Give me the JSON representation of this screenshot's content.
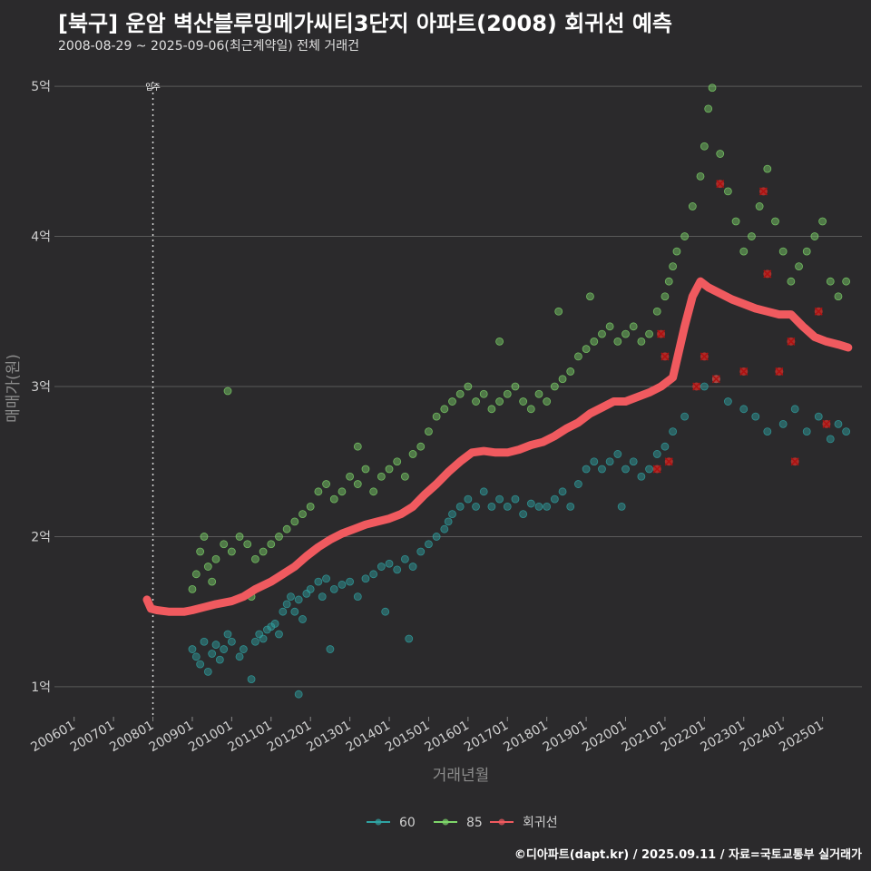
{
  "header": {
    "title": "[북구] 운암 벽산블루밍메가씨티3단지 아파트(2008) 회귀선 예측",
    "subtitle": "2008-08-29 ~ 2025-09-06(최근계약일) 전체 거래건"
  },
  "caption": "©디아파트(dapt.kr) / 2025.09.11 / 자료=국토교통부 실거래가",
  "colors": {
    "background": "#2b2a2c",
    "grid": "#5a5a5a",
    "s60": "#2fa3a3",
    "s85": "#7ed66a",
    "regression": "#f05a5f",
    "highlight": "#e0302a"
  },
  "chart_data": {
    "type": "scatter",
    "title": "[북구] 운암 벽산블루밍메가씨티3단지 아파트(2008) 회귀선 예측",
    "subtitle": "2008-08-29 ~ 2025-09-06(최근계약일) 전체 거래건",
    "xlabel": "거래년월",
    "ylabel": "매매가(원)",
    "xlim": [
      2005.5,
      2026.0
    ],
    "ylim": [
      0.8,
      5.2
    ],
    "grid": true,
    "legend_position": "bottom",
    "x_ticks": [
      {
        "label": "200601",
        "x": 2006.0
      },
      {
        "label": "200701",
        "x": 2007.0
      },
      {
        "label": "200801",
        "x": 2008.0
      },
      {
        "label": "200901",
        "x": 2009.0
      },
      {
        "label": "201001",
        "x": 2010.0
      },
      {
        "label": "201101",
        "x": 2011.0
      },
      {
        "label": "201201",
        "x": 2012.0
      },
      {
        "label": "201301",
        "x": 2013.0
      },
      {
        "label": "201401",
        "x": 2014.0
      },
      {
        "label": "201501",
        "x": 2015.0
      },
      {
        "label": "201601",
        "x": 2016.0
      },
      {
        "label": "201701",
        "x": 2017.0
      },
      {
        "label": "201801",
        "x": 2018.0
      },
      {
        "label": "201901",
        "x": 2019.0
      },
      {
        "label": "202001",
        "x": 2020.0
      },
      {
        "label": "202101",
        "x": 2021.0
      },
      {
        "label": "202201",
        "x": 2022.0
      },
      {
        "label": "202301",
        "x": 2023.0
      },
      {
        "label": "202401",
        "x": 2024.0
      },
      {
        "label": "202501",
        "x": 2025.0
      }
    ],
    "y_ticks": [
      {
        "label": "1억",
        "y": 1
      },
      {
        "label": "2억",
        "y": 2
      },
      {
        "label": "3억",
        "y": 3
      },
      {
        "label": "4억",
        "y": 4
      },
      {
        "label": "5억",
        "y": 5
      }
    ],
    "annotation": {
      "label": "입주",
      "x": 2008.0
    },
    "legend": [
      {
        "name": "60",
        "color": "#2fa3a3"
      },
      {
        "name": "85",
        "color": "#7ed66a"
      },
      {
        "name": "회귀선",
        "color": "#f05a5f"
      }
    ],
    "series": [
      {
        "name": "60",
        "points": [
          [
            2009.0,
            1.25
          ],
          [
            2009.1,
            1.2
          ],
          [
            2009.2,
            1.15
          ],
          [
            2009.3,
            1.3
          ],
          [
            2009.4,
            1.1
          ],
          [
            2009.5,
            1.22
          ],
          [
            2009.6,
            1.28
          ],
          [
            2009.7,
            1.18
          ],
          [
            2009.8,
            1.25
          ],
          [
            2009.9,
            1.35
          ],
          [
            2010.0,
            1.3
          ],
          [
            2010.2,
            1.2
          ],
          [
            2010.3,
            1.25
          ],
          [
            2010.5,
            1.05
          ],
          [
            2010.6,
            1.3
          ],
          [
            2010.7,
            1.35
          ],
          [
            2010.8,
            1.32
          ],
          [
            2010.9,
            1.38
          ],
          [
            2011.0,
            1.4
          ],
          [
            2011.1,
            1.42
          ],
          [
            2011.2,
            1.35
          ],
          [
            2011.3,
            1.5
          ],
          [
            2011.4,
            1.55
          ],
          [
            2011.5,
            1.6
          ],
          [
            2011.6,
            1.5
          ],
          [
            2011.7,
            1.58
          ],
          [
            2011.8,
            1.45
          ],
          [
            2011.9,
            1.62
          ],
          [
            2012.0,
            1.65
          ],
          [
            2012.2,
            1.7
          ],
          [
            2012.3,
            1.6
          ],
          [
            2012.4,
            1.72
          ],
          [
            2012.6,
            1.65
          ],
          [
            2012.8,
            1.68
          ],
          [
            2013.0,
            1.7
          ],
          [
            2013.2,
            1.6
          ],
          [
            2013.4,
            1.72
          ],
          [
            2013.6,
            1.75
          ],
          [
            2013.8,
            1.8
          ],
          [
            2014.0,
            1.82
          ],
          [
            2014.2,
            1.78
          ],
          [
            2014.4,
            1.85
          ],
          [
            2014.6,
            1.8
          ],
          [
            2014.8,
            1.9
          ],
          [
            2015.0,
            1.95
          ],
          [
            2015.2,
            2.0
          ],
          [
            2015.4,
            2.05
          ],
          [
            2015.5,
            2.1
          ],
          [
            2015.6,
            2.15
          ],
          [
            2015.8,
            2.2
          ],
          [
            2016.0,
            2.25
          ],
          [
            2016.2,
            2.2
          ],
          [
            2016.4,
            2.3
          ],
          [
            2016.6,
            2.2
          ],
          [
            2016.8,
            2.25
          ],
          [
            2017.0,
            2.2
          ],
          [
            2017.2,
            2.25
          ],
          [
            2017.4,
            2.15
          ],
          [
            2017.6,
            2.22
          ],
          [
            2017.8,
            2.2
          ],
          [
            2018.0,
            2.2
          ],
          [
            2018.2,
            2.25
          ],
          [
            2018.4,
            2.3
          ],
          [
            2018.6,
            2.2
          ],
          [
            2018.8,
            2.35
          ],
          [
            2019.0,
            2.45
          ],
          [
            2019.2,
            2.5
          ],
          [
            2019.4,
            2.45
          ],
          [
            2019.6,
            2.5
          ],
          [
            2019.8,
            2.55
          ],
          [
            2020.0,
            2.45
          ],
          [
            2020.2,
            2.5
          ],
          [
            2020.4,
            2.4
          ],
          [
            2020.6,
            2.45
          ],
          [
            2020.8,
            2.55
          ],
          [
            2021.0,
            2.6
          ],
          [
            2021.2,
            2.7
          ],
          [
            2021.5,
            2.8
          ],
          [
            2022.0,
            3.0
          ],
          [
            2022.3,
            3.05
          ],
          [
            2022.6,
            2.9
          ],
          [
            2023.0,
            2.85
          ],
          [
            2023.3,
            2.8
          ],
          [
            2023.6,
            2.7
          ],
          [
            2024.0,
            2.75
          ],
          [
            2024.3,
            2.85
          ],
          [
            2024.6,
            2.7
          ],
          [
            2024.9,
            2.8
          ],
          [
            2025.2,
            2.65
          ],
          [
            2025.4,
            2.75
          ],
          [
            2025.6,
            2.7
          ],
          [
            2014.5,
            1.32
          ],
          [
            2011.7,
            0.95
          ],
          [
            2012.5,
            1.25
          ],
          [
            2013.9,
            1.5
          ],
          [
            2019.9,
            2.2
          ]
        ]
      },
      {
        "name": "85",
        "points": [
          [
            2009.0,
            1.65
          ],
          [
            2009.1,
            1.75
          ],
          [
            2009.2,
            1.9
          ],
          [
            2009.3,
            2.0
          ],
          [
            2009.4,
            1.8
          ],
          [
            2009.5,
            1.7
          ],
          [
            2009.6,
            1.85
          ],
          [
            2009.8,
            1.95
          ],
          [
            2010.0,
            1.9
          ],
          [
            2010.2,
            2.0
          ],
          [
            2010.4,
            1.95
          ],
          [
            2010.6,
            1.85
          ],
          [
            2010.8,
            1.9
          ],
          [
            2011.0,
            1.95
          ],
          [
            2011.2,
            2.0
          ],
          [
            2011.4,
            2.05
          ],
          [
            2011.6,
            2.1
          ],
          [
            2011.8,
            2.15
          ],
          [
            2012.0,
            2.2
          ],
          [
            2012.2,
            2.3
          ],
          [
            2012.4,
            2.35
          ],
          [
            2012.6,
            2.25
          ],
          [
            2012.8,
            2.3
          ],
          [
            2013.0,
            2.4
          ],
          [
            2013.2,
            2.35
          ],
          [
            2013.4,
            2.45
          ],
          [
            2013.6,
            2.3
          ],
          [
            2013.8,
            2.4
          ],
          [
            2014.0,
            2.45
          ],
          [
            2014.2,
            2.5
          ],
          [
            2014.4,
            2.4
          ],
          [
            2014.6,
            2.55
          ],
          [
            2014.8,
            2.6
          ],
          [
            2015.0,
            2.7
          ],
          [
            2015.2,
            2.8
          ],
          [
            2015.4,
            2.85
          ],
          [
            2015.6,
            2.9
          ],
          [
            2015.8,
            2.95
          ],
          [
            2016.0,
            3.0
          ],
          [
            2016.2,
            2.9
          ],
          [
            2016.4,
            2.95
          ],
          [
            2016.6,
            2.85
          ],
          [
            2016.8,
            2.9
          ],
          [
            2017.0,
            2.95
          ],
          [
            2017.2,
            3.0
          ],
          [
            2017.4,
            2.9
          ],
          [
            2017.6,
            2.85
          ],
          [
            2017.8,
            2.95
          ],
          [
            2018.0,
            2.9
          ],
          [
            2018.2,
            3.0
          ],
          [
            2018.4,
            3.05
          ],
          [
            2018.6,
            3.1
          ],
          [
            2018.8,
            3.2
          ],
          [
            2019.0,
            3.25
          ],
          [
            2019.2,
            3.3
          ],
          [
            2019.4,
            3.35
          ],
          [
            2019.6,
            3.4
          ],
          [
            2019.8,
            3.3
          ],
          [
            2020.0,
            3.35
          ],
          [
            2020.2,
            3.4
          ],
          [
            2020.4,
            3.3
          ],
          [
            2020.6,
            3.35
          ],
          [
            2020.8,
            3.5
          ],
          [
            2021.0,
            3.6
          ],
          [
            2021.1,
            3.7
          ],
          [
            2021.2,
            3.8
          ],
          [
            2021.3,
            3.9
          ],
          [
            2021.5,
            4.0
          ],
          [
            2021.7,
            4.2
          ],
          [
            2021.9,
            4.4
          ],
          [
            2022.0,
            4.6
          ],
          [
            2022.1,
            4.85
          ],
          [
            2022.2,
            4.99
          ],
          [
            2022.4,
            4.55
          ],
          [
            2022.6,
            4.3
          ],
          [
            2022.8,
            4.1
          ],
          [
            2023.0,
            3.9
          ],
          [
            2023.2,
            4.0
          ],
          [
            2023.4,
            4.2
          ],
          [
            2023.6,
            4.45
          ],
          [
            2023.8,
            4.1
          ],
          [
            2024.0,
            3.9
          ],
          [
            2024.2,
            3.7
          ],
          [
            2024.4,
            3.8
          ],
          [
            2024.6,
            3.9
          ],
          [
            2024.8,
            4.0
          ],
          [
            2025.0,
            4.1
          ],
          [
            2025.2,
            3.7
          ],
          [
            2025.4,
            3.6
          ],
          [
            2025.6,
            3.7
          ],
          [
            2009.9,
            2.97
          ],
          [
            2016.8,
            3.3
          ],
          [
            2013.2,
            2.6
          ],
          [
            2019.1,
            3.6
          ],
          [
            2018.3,
            3.5
          ],
          [
            2010.5,
            1.6
          ]
        ]
      }
    ],
    "highlights": [
      [
        2020.8,
        2.45
      ],
      [
        2020.9,
        3.35
      ],
      [
        2021.0,
        3.2
      ],
      [
        2021.1,
        2.5
      ],
      [
        2021.8,
        3.0
      ],
      [
        2022.0,
        3.2
      ],
      [
        2022.3,
        3.05
      ],
      [
        2022.4,
        4.35
      ],
      [
        2023.0,
        3.1
      ],
      [
        2023.5,
        4.3
      ],
      [
        2023.6,
        3.75
      ],
      [
        2023.9,
        3.1
      ],
      [
        2024.2,
        3.3
      ],
      [
        2024.3,
        2.5
      ],
      [
        2024.9,
        3.5
      ],
      [
        2025.1,
        2.75
      ]
    ],
    "regression": [
      [
        2007.85,
        1.58
      ],
      [
        2007.95,
        1.52
      ],
      [
        2008.1,
        1.51
      ],
      [
        2008.4,
        1.5
      ],
      [
        2008.8,
        1.5
      ],
      [
        2009.0,
        1.51
      ],
      [
        2009.3,
        1.53
      ],
      [
        2009.6,
        1.55
      ],
      [
        2010.0,
        1.57
      ],
      [
        2010.3,
        1.6
      ],
      [
        2010.6,
        1.65
      ],
      [
        2011.0,
        1.7
      ],
      [
        2011.3,
        1.75
      ],
      [
        2011.6,
        1.8
      ],
      [
        2011.9,
        1.87
      ],
      [
        2012.2,
        1.93
      ],
      [
        2012.5,
        1.98
      ],
      [
        2012.8,
        2.02
      ],
      [
        2013.1,
        2.05
      ],
      [
        2013.4,
        2.08
      ],
      [
        2013.7,
        2.1
      ],
      [
        2014.0,
        2.12
      ],
      [
        2014.3,
        2.15
      ],
      [
        2014.6,
        2.2
      ],
      [
        2014.9,
        2.28
      ],
      [
        2015.2,
        2.35
      ],
      [
        2015.5,
        2.43
      ],
      [
        2015.8,
        2.5
      ],
      [
        2016.1,
        2.56
      ],
      [
        2016.4,
        2.57
      ],
      [
        2016.7,
        2.56
      ],
      [
        2017.0,
        2.56
      ],
      [
        2017.3,
        2.58
      ],
      [
        2017.6,
        2.61
      ],
      [
        2017.9,
        2.63
      ],
      [
        2018.2,
        2.67
      ],
      [
        2018.5,
        2.72
      ],
      [
        2018.8,
        2.76
      ],
      [
        2019.1,
        2.82
      ],
      [
        2019.4,
        2.86
      ],
      [
        2019.7,
        2.9
      ],
      [
        2020.0,
        2.9
      ],
      [
        2020.3,
        2.93
      ],
      [
        2020.6,
        2.96
      ],
      [
        2020.9,
        3.0
      ],
      [
        2021.2,
        3.06
      ],
      [
        2021.5,
        3.4
      ],
      [
        2021.7,
        3.6
      ],
      [
        2021.9,
        3.7
      ],
      [
        2022.1,
        3.66
      ],
      [
        2022.4,
        3.62
      ],
      [
        2022.7,
        3.58
      ],
      [
        2023.0,
        3.55
      ],
      [
        2023.3,
        3.52
      ],
      [
        2023.6,
        3.5
      ],
      [
        2023.9,
        3.48
      ],
      [
        2024.2,
        3.48
      ],
      [
        2024.5,
        3.4
      ],
      [
        2024.8,
        3.33
      ],
      [
        2025.1,
        3.3
      ],
      [
        2025.4,
        3.28
      ],
      [
        2025.65,
        3.26
      ]
    ]
  }
}
